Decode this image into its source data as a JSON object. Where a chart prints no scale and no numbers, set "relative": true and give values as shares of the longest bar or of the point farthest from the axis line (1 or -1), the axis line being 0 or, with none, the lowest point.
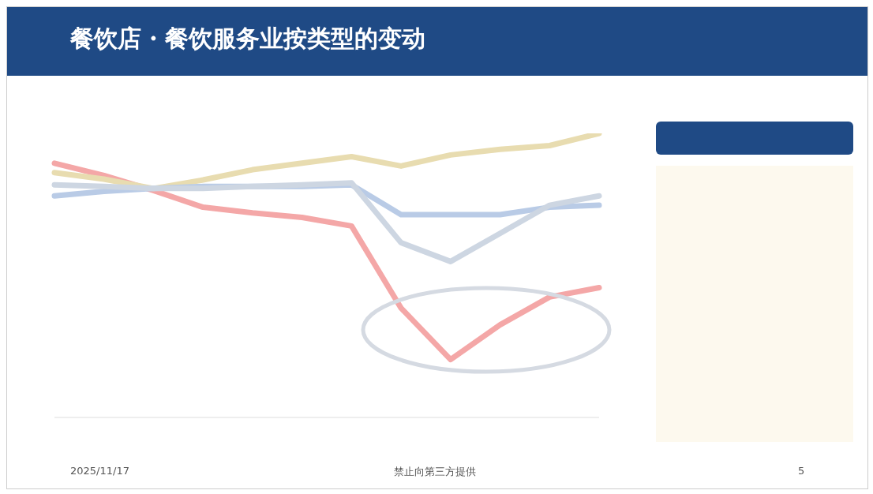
{
  "chart_data": {
    "type": "line",
    "title": "餐饮店・餐饮服务业按类型的变动",
    "relative": true,
    "categories": [
      null,
      null,
      null,
      null,
      null,
      null,
      null,
      null,
      null,
      null,
      null,
      null
    ],
    "series": [
      {
        "color": "#f4a7a7",
        "values": [
          0.895,
          0.852,
          0.799,
          0.74,
          0.72,
          0.704,
          0.674,
          0.385,
          0.204,
          0.326,
          0.424,
          0.457
        ]
      },
      {
        "color": "#e8dcb0",
        "values": [
          0.862,
          0.839,
          0.806,
          0.836,
          0.872,
          0.895,
          0.918,
          0.885,
          0.924,
          0.944,
          0.957,
          1
        ]
      },
      {
        "color": "#b9cbe6",
        "values": [
          0.78,
          0.796,
          0.806,
          0.813,
          0.813,
          0.813,
          0.819,
          0.714,
          0.714,
          0.714,
          0.74,
          0.747
        ]
      },
      {
        "color": "#cdd6e2",
        "values": [
          0.819,
          0.813,
          0.806,
          0.806,
          0.813,
          0.819,
          0.826,
          0.615,
          0.549,
          0.648,
          0.747,
          0.78
        ]
      }
    ],
    "marker": "none",
    "line_style": "solid",
    "annotations": [
      "2025/11/17",
      "禁止向第三方提供",
      "5"
    ]
  }
}
